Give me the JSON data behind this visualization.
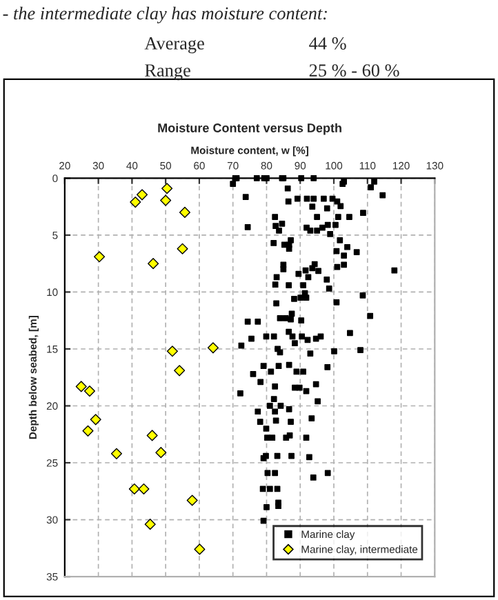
{
  "chart_data": {
    "type": "scatter",
    "title": "Moisture Content versus Depth",
    "xlabel": "Moisture content, w [%]",
    "ylabel": "Depth below seabed, [m]",
    "annotations": [
      "- the intermediate clay has moisture content:",
      "Average",
      "44 %",
      "Range",
      "25 % - 60 %"
    ],
    "xlim": [
      20,
      130
    ],
    "xticks": [
      20,
      30,
      40,
      50,
      60,
      70,
      80,
      90,
      100,
      110,
      120,
      130
    ],
    "ylim": [
      35,
      0
    ],
    "yticks": [
      0,
      5,
      10,
      15,
      20,
      25,
      30,
      35
    ],
    "grid": true,
    "legend": "bottom right",
    "series": [
      {
        "name": "Marine clay",
        "color": "#000000",
        "marker": "square",
        "x": [
          70.7,
          71.1,
          77.1,
          79.3,
          80,
          84.6,
          85,
          90.3,
          94,
          70,
          103,
          102.6,
          112,
          111,
          73.8,
          114.5,
          86.3,
          89.2,
          86.5,
          92,
          94,
          97,
          99.6,
          101,
          102,
          93.6,
          98,
          108.7,
          101.3,
          104.6,
          95,
          82.5,
          84.6,
          82.7,
          74.4,
          83.7,
          91.9,
          93,
          95,
          96.6,
          98.2,
          100.5,
          98.9,
          101.8,
          82.1,
          85.3,
          86.7,
          87.2,
          86.7,
          100.8,
          104,
          106.8,
          103,
          85,
          85,
          83,
          89.5,
          91.6,
          93.6,
          94.3,
          92.4,
          95.4,
          101,
          103,
          118,
          97.9,
          98.6,
          82.6,
          86.6,
          90.9,
          91.4,
          90.1,
          88.2,
          91.8,
          82.9,
          100.8,
          108.6,
          74.4,
          77.4,
          84,
          85.7,
          87.2,
          90.3,
          87.5,
          110.8,
          104.8,
          75.5,
          79.9,
          82.2,
          86.6,
          87.7,
          88.4,
          90.5,
          92.2,
          94.7,
          96.1,
          72.5,
          83.3,
          84,
          93,
          100.1,
          107.9,
          98.1,
          79.1,
          83.6,
          81.3,
          86.7,
          88.9,
          90.9,
          76,
          78.2,
          82.5,
          88.4,
          89.8,
          91.8,
          94.7,
          72.2,
          82.2,
          95.2,
          77.4,
          81,
          84.2,
          86.7,
          82.5,
          78.1,
          82.8,
          87.2,
          93.4,
          79.9,
          80.2,
          81.7,
          85.8,
          86.9,
          91.8,
          79.1,
          79.8,
          83.2,
          87.4,
          92.7,
          80.3,
          82.5,
          98.2,
          93.9,
          78.9,
          81,
          83.2,
          83.5,
          83.5,
          80,
          79.1
        ],
        "values": [
          0,
          0,
          0,
          0,
          0,
          0,
          0,
          0,
          0,
          0.5,
          0.3,
          0.5,
          0.3,
          0.8,
          1.65,
          1.5,
          0.9,
          1.8,
          2.05,
          1.8,
          1.8,
          1.8,
          1.8,
          2.05,
          2.45,
          2.5,
          2.65,
          3.05,
          3.4,
          3.4,
          3.4,
          3.4,
          4.0,
          4.2,
          4.3,
          4.6,
          4.35,
          4.6,
          4.6,
          4.35,
          4.1,
          4.1,
          4.9,
          5.45,
          5.7,
          5.85,
          5.85,
          5.45,
          6.2,
          6.4,
          6.05,
          6.5,
          6.8,
          7.6,
          8.0,
          8.7,
          8.4,
          8.1,
          7.9,
          7.55,
          8.7,
          8.15,
          7.8,
          7.6,
          8.1,
          8.9,
          9.7,
          9.35,
          9.4,
          9.4,
          10.1,
          10.5,
          10.6,
          10.5,
          11,
          10.9,
          10.3,
          12.6,
          12.6,
          12.3,
          12.3,
          12.4,
          12.5,
          11.9,
          12.1,
          13.6,
          14.1,
          13.9,
          13.9,
          13.5,
          13.9,
          14.5,
          13.9,
          14.2,
          14.1,
          13.9,
          14.7,
          15,
          15.3,
          15.4,
          15.2,
          15.1,
          16.6,
          16.5,
          16.5,
          17,
          16.4,
          17,
          17,
          17.2,
          17.9,
          18.3,
          18.4,
          18.4,
          18.7,
          18.1,
          18.9,
          19.4,
          19.6,
          20.5,
          20,
          20,
          20.3,
          20.5,
          21.4,
          21.3,
          21.4,
          21.1,
          22,
          22.8,
          22.8,
          22.8,
          22.6,
          22.8,
          24.6,
          24.4,
          24.4,
          24.4,
          24.5,
          25.9,
          25.9,
          25.9,
          26.3,
          27.3,
          27.3,
          27.3,
          28.5,
          28.8,
          28.9,
          30.1
        ]
      },
      {
        "name": "Marine clay, intermediate",
        "color": "#ffff00",
        "marker": "diamond",
        "x": [
          50.4,
          43,
          41,
          50,
          55.7,
          55,
          30.3,
          46.3,
          52,
          64.1,
          54.1,
          24.9,
          27.4,
          29.2,
          26.9,
          46,
          35.4,
          48.6,
          40.7,
          43.5,
          57.9,
          45.4,
          60.1
        ],
        "values": [
          0.9,
          1.45,
          2.1,
          1.95,
          3.0,
          6.2,
          6.9,
          7.5,
          15.2,
          14.9,
          16.9,
          18.3,
          18.7,
          21.2,
          22.2,
          22.6,
          24.2,
          24.1,
          27.3,
          27.3,
          28.3,
          30.4,
          32.6
        ]
      }
    ]
  }
}
